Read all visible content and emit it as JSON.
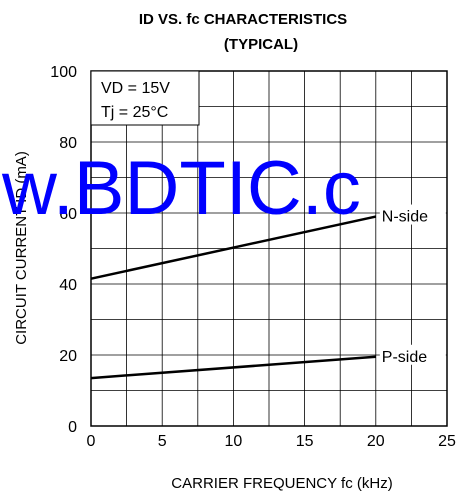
{
  "chart_data": {
    "type": "line",
    "title": "ID VS. fc CHARACTERISTICS",
    "subtitle": "(TYPICAL)",
    "xlabel": "CARRIER FREQUENCY  fc (kHz)",
    "ylabel": "CIRCUIT CURRENT  ID (mA)",
    "xlim": [
      0,
      25
    ],
    "ylim": [
      0,
      100
    ],
    "x_ticks": [
      0,
      5,
      10,
      15,
      20,
      25
    ],
    "y_ticks": [
      0,
      20,
      40,
      60,
      80,
      100
    ],
    "x_tick_labels": [
      "0",
      "5",
      "10",
      "15",
      "20",
      "25"
    ],
    "y_tick_labels": [
      "0",
      "20",
      "40",
      "60",
      "80",
      "100"
    ],
    "grid": true,
    "grid_x_step": 2.5,
    "grid_y_step": 10,
    "series": [
      {
        "name": "N-side",
        "x": [
          0,
          20
        ],
        "y": [
          41.5,
          59
        ]
      },
      {
        "name": "P-side",
        "x": [
          0,
          20
        ],
        "y": [
          13.5,
          19.5
        ]
      }
    ],
    "conditions": [
      "VD = 15V",
      "Tj = 25°C"
    ],
    "watermark": "w.BDTIC.c",
    "watermark_color": "#0000ff"
  }
}
